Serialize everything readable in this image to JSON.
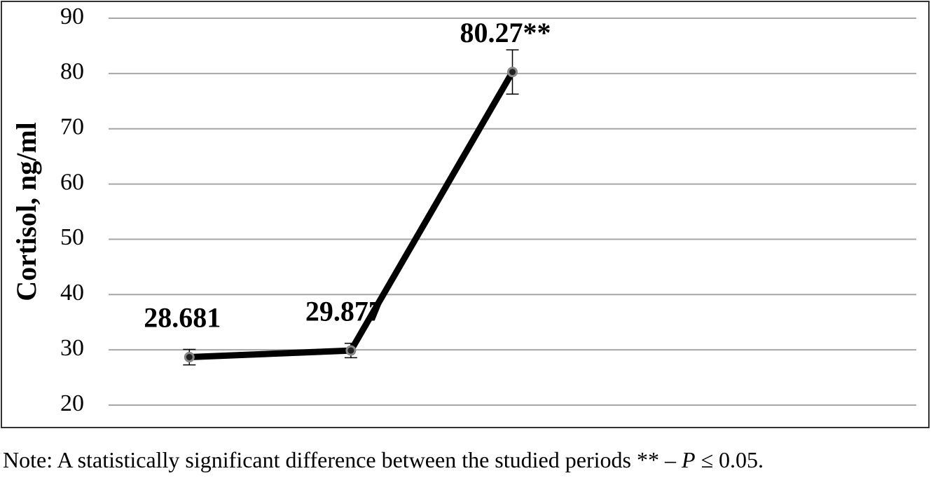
{
  "chart_data": {
    "type": "line",
    "y_label": "Cortisol, ng/ml",
    "categories": [
      null,
      null,
      null,
      null,
      null
    ],
    "values": [
      28.681,
      29.877,
      80.27,
      null,
      null
    ],
    "value_labels": [
      "28.681",
      "29.877",
      "80.27**",
      null,
      null
    ],
    "errors": [
      1.4,
      1.3,
      4,
      null,
      null
    ],
    "color": "#000000",
    "ylim": [
      20,
      90
    ],
    "yticks": [
      20,
      30,
      40,
      50,
      60,
      70,
      80,
      90
    ],
    "grid": true
  },
  "note": [
    "Note: A statistically significant difference between the studied periods ** – ",
    "P",
    " ≤ 0.05."
  ]
}
